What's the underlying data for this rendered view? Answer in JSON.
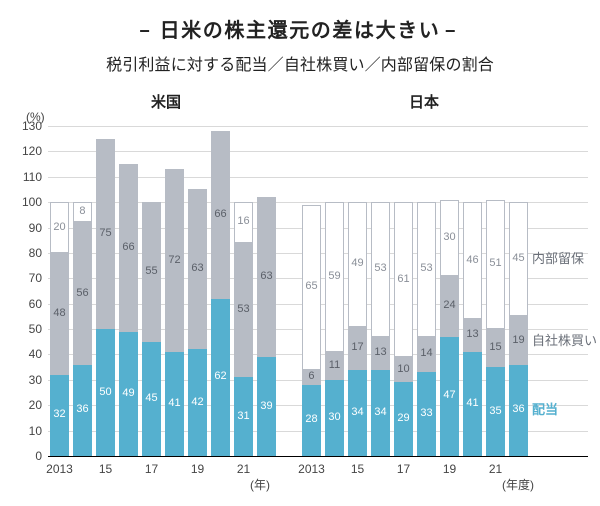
{
  "title_dash": "−",
  "title": "日米の株主還元の差は大きい",
  "subtitle": "税引利益に対する配当／自社株買い／内部留保の割合",
  "y_unit": "(%)",
  "y_ticks": [
    0,
    10,
    20,
    30,
    40,
    50,
    60,
    70,
    80,
    90,
    100,
    110,
    120,
    130
  ],
  "y_max": 130,
  "grid_color": "#d9d9d9",
  "zero_line_color": "#888888",
  "colors": {
    "dividend": "#55b0cf",
    "buyback": "#b7bcc5",
    "retained_fill": "#ffffff",
    "retained_border": "#b7bcc5",
    "label_on_dividend": "#ffffff",
    "label_on_buyback": "#5a5f68",
    "label_on_retained": "#8a8f98",
    "axis_text": "#444444"
  },
  "panels": [
    {
      "title": "米国",
      "x_unit": "(年)",
      "years": [
        "2013",
        "",
        "15",
        "",
        "17",
        "",
        "19",
        "",
        "21",
        ""
      ],
      "series": [
        {
          "d": 32,
          "b": 48,
          "r": 20
        },
        {
          "d": 36,
          "b": 56,
          "r": 8
        },
        {
          "d": 50,
          "b": 75,
          "r": 0
        },
        {
          "d": 49,
          "b": 66,
          "r": 0
        },
        {
          "d": 45,
          "b": 55,
          "r": 0
        },
        {
          "d": 41,
          "b": 72,
          "r": 0
        },
        {
          "d": 42,
          "b": 63,
          "r": 0
        },
        {
          "d": 62,
          "b": 66,
          "r": 0
        },
        {
          "d": 31,
          "b": 53,
          "r": 16
        },
        {
          "d": 39,
          "b": 63,
          "r": 0
        }
      ]
    },
    {
      "title": "日本",
      "x_unit": "(年度)",
      "years": [
        "2013",
        "",
        "15",
        "",
        "17",
        "",
        "19",
        "",
        "21",
        ""
      ],
      "series": [
        {
          "d": 28,
          "b": 6,
          "r": 65
        },
        {
          "d": 30,
          "b": 11,
          "r": 59
        },
        {
          "d": 34,
          "b": 17,
          "r": 49
        },
        {
          "d": 34,
          "b": 13,
          "r": 53
        },
        {
          "d": 29,
          "b": 10,
          "r": 61
        },
        {
          "d": 33,
          "b": 14,
          "r": 53
        },
        {
          "d": 47,
          "b": 24,
          "r": 30
        },
        {
          "d": 41,
          "b": 13,
          "r": 46
        },
        {
          "d": 35,
          "b": 15,
          "r": 51
        },
        {
          "d": 36,
          "b": 19,
          "r": 45
        }
      ]
    }
  ],
  "legend": {
    "retained": "内部留保",
    "buyback": "自社株買い",
    "dividend": "配当"
  }
}
